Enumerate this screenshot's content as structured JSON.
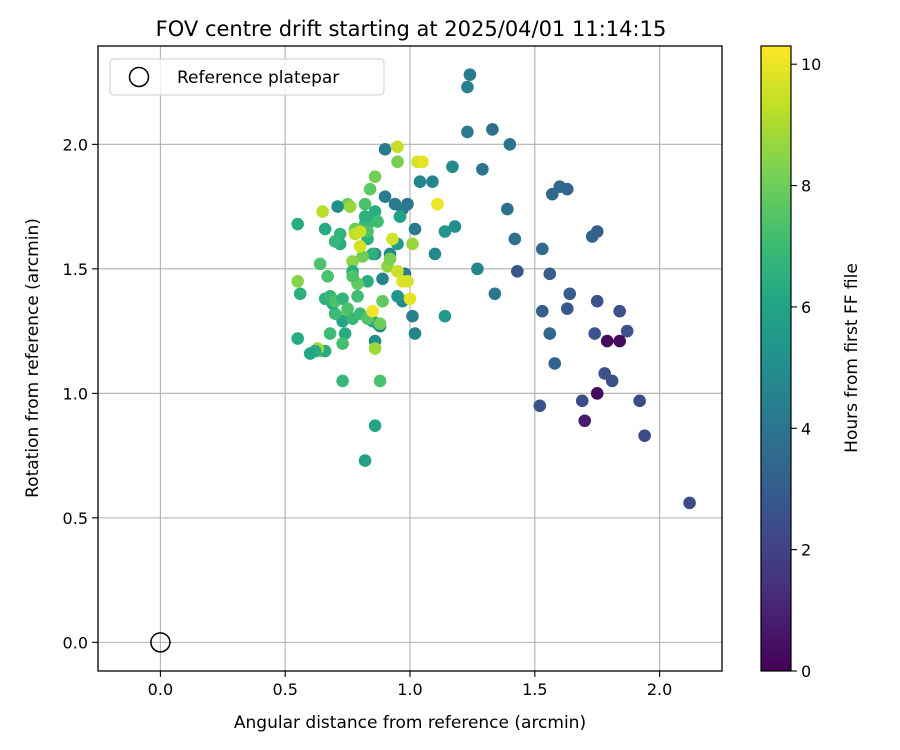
{
  "chart_data": {
    "type": "scatter",
    "title": "FOV centre drift starting at 2025/04/01 11:14:15",
    "xlabel": "Angular distance from reference (arcmin)",
    "ylabel": "Rotation from reference (arcmin)",
    "xlim": [
      -0.25,
      2.25
    ],
    "ylim": [
      -0.115,
      2.395
    ],
    "xticks": [
      0.0,
      0.5,
      1.0,
      1.5,
      2.0
    ],
    "yticks": [
      0.0,
      0.5,
      1.0,
      1.5,
      2.0
    ],
    "xtick_labels": [
      "0.0",
      "0.5",
      "1.0",
      "1.5",
      "2.0"
    ],
    "ytick_labels": [
      "0.0",
      "0.5",
      "1.0",
      "1.5",
      "2.0"
    ],
    "grid": true,
    "legend": {
      "placement": "top-left",
      "entries": [
        "Reference platepar"
      ]
    },
    "reference_point": {
      "x": 0.0,
      "y": 0.0,
      "label": "Reference platepar"
    },
    "colorbar": {
      "label": "Hours from first FF file",
      "colormap": "viridis",
      "range": [
        0,
        10.3
      ],
      "ticks": [
        0,
        2,
        4,
        6,
        8,
        10
      ],
      "tick_labels": [
        "0",
        "2",
        "4",
        "6",
        "8",
        "10"
      ]
    },
    "series": [
      {
        "marker": "circle",
        "points": [
          [
            2.12,
            0.56,
            2.3
          ],
          [
            1.94,
            0.83,
            2.3
          ],
          [
            1.92,
            0.97,
            2.4
          ],
          [
            1.87,
            1.25,
            2.6
          ],
          [
            1.84,
            1.33,
            2.6
          ],
          [
            1.84,
            1.21,
            0.3
          ],
          [
            1.81,
            1.05,
            2.5
          ],
          [
            1.79,
            1.21,
            0.3
          ],
          [
            1.78,
            1.08,
            2.6
          ],
          [
            1.75,
            1.0,
            0.2
          ],
          [
            1.75,
            1.37,
            2.6
          ],
          [
            1.74,
            1.24,
            2.7
          ],
          [
            1.75,
            1.65,
            3.0
          ],
          [
            1.73,
            1.63,
            3.2
          ],
          [
            1.7,
            0.89,
            0.8
          ],
          [
            1.69,
            0.97,
            2.4
          ],
          [
            1.64,
            1.4,
            3.0
          ],
          [
            1.63,
            1.34,
            2.8
          ],
          [
            1.63,
            1.82,
            3.3
          ],
          [
            1.6,
            1.83,
            3.4
          ],
          [
            1.58,
            1.12,
            3.3
          ],
          [
            1.57,
            1.8,
            3.5
          ],
          [
            1.56,
            1.48,
            3.0
          ],
          [
            1.56,
            1.24,
            3.4
          ],
          [
            1.53,
            1.33,
            3.1
          ],
          [
            1.53,
            1.58,
            3.6
          ],
          [
            1.52,
            0.95,
            2.6
          ],
          [
            1.43,
            1.49,
            2.7
          ],
          [
            1.42,
            1.62,
            3.8
          ],
          [
            1.39,
            1.74,
            3.8
          ],
          [
            1.4,
            2.0,
            4.0
          ],
          [
            1.34,
            1.4,
            4.1
          ],
          [
            1.33,
            2.06,
            3.8
          ],
          [
            1.29,
            1.9,
            4.0
          ],
          [
            1.27,
            1.5,
            4.7
          ],
          [
            1.24,
            2.28,
            4.3
          ],
          [
            1.23,
            2.23,
            4.5
          ],
          [
            1.23,
            2.05,
            4.2
          ],
          [
            1.18,
            1.67,
            5.0
          ],
          [
            1.17,
            1.91,
            4.9
          ],
          [
            1.14,
            1.31,
            5.5
          ],
          [
            1.14,
            1.65,
            5.3
          ],
          [
            1.1,
            1.56,
            4.8
          ],
          [
            1.09,
            1.85,
            4.6
          ],
          [
            1.04,
            1.85,
            4.6
          ],
          [
            1.02,
            1.66,
            4.3
          ],
          [
            1.02,
            1.24,
            4.6
          ],
          [
            1.01,
            1.31,
            4.5
          ],
          [
            0.99,
            1.76,
            4.0
          ],
          [
            0.97,
            1.74,
            4.2
          ],
          [
            0.96,
            1.71,
            4.6
          ],
          [
            0.94,
            1.76,
            4.2
          ],
          [
            0.98,
            1.48,
            4.3
          ],
          [
            0.97,
            1.37,
            4.9
          ],
          [
            0.95,
            1.39,
            5.4
          ],
          [
            0.95,
            1.6,
            5.6
          ],
          [
            0.92,
            1.56,
            4.8
          ],
          [
            0.9,
            1.79,
            4.3
          ],
          [
            0.9,
            1.98,
            4.2
          ],
          [
            0.89,
            1.46,
            4.5
          ],
          [
            0.88,
            1.27,
            4.6
          ],
          [
            0.87,
            1.28,
            5.2
          ],
          [
            0.86,
            1.56,
            4.6
          ],
          [
            0.86,
            1.21,
            5.1
          ],
          [
            0.85,
            1.29,
            6.1
          ],
          [
            0.86,
            1.73,
            6.4
          ],
          [
            0.84,
            1.69,
            6.4
          ],
          [
            0.85,
            1.56,
            6.5
          ],
          [
            0.83,
            1.62,
            6.5
          ],
          [
            0.83,
            1.45,
            6.4
          ],
          [
            0.82,
            1.68,
            6.9
          ],
          [
            0.82,
            1.71,
            6.5
          ],
          [
            0.82,
            0.73,
            5.9
          ],
          [
            0.86,
            0.87,
            6.0
          ],
          [
            0.88,
            1.05,
            7.3
          ],
          [
            0.88,
            1.28,
            8.0
          ],
          [
            0.89,
            1.37,
            7.8
          ],
          [
            0.87,
            1.69,
            7.1
          ],
          [
            0.86,
            1.87,
            8.1
          ],
          [
            0.84,
            1.82,
            7.7
          ],
          [
            0.82,
            1.76,
            7.3
          ],
          [
            0.83,
            1.65,
            7.4
          ],
          [
            0.81,
            1.55,
            8.0
          ],
          [
            0.79,
            1.44,
            7.8
          ],
          [
            0.78,
            1.66,
            7.9
          ],
          [
            0.77,
            1.53,
            8.5
          ],
          [
            0.77,
            1.49,
            6.4
          ],
          [
            0.76,
            1.75,
            7.4
          ],
          [
            0.75,
            1.76,
            8.0
          ],
          [
            0.74,
            1.31,
            8.2
          ],
          [
            0.73,
            1.29,
            6.1
          ],
          [
            0.74,
            1.24,
            6.4
          ],
          [
            0.73,
            1.2,
            7.2
          ],
          [
            0.73,
            1.05,
            6.8
          ],
          [
            0.72,
            1.64,
            6.7
          ],
          [
            0.72,
            1.6,
            6.4
          ],
          [
            0.71,
            1.75,
            5.1
          ],
          [
            0.7,
            1.61,
            6.8
          ],
          [
            0.7,
            1.32,
            7.0
          ],
          [
            0.69,
            1.36,
            6.3
          ],
          [
            0.68,
            1.24,
            7.0
          ],
          [
            0.67,
            1.47,
            7.3
          ],
          [
            0.66,
            1.38,
            6.6
          ],
          [
            0.66,
            1.66,
            6.3
          ],
          [
            0.65,
            1.73,
            9.2
          ],
          [
            0.64,
            1.52,
            7.4
          ],
          [
            0.64,
            1.17,
            8.5
          ],
          [
            0.66,
            1.17,
            6.4
          ],
          [
            0.63,
            1.18,
            8.9
          ],
          [
            0.62,
            1.17,
            6.4
          ],
          [
            0.6,
            1.16,
            6.1
          ],
          [
            0.56,
            1.4,
            6.5
          ],
          [
            0.55,
            1.45,
            8.4
          ],
          [
            0.55,
            1.22,
            6.3
          ],
          [
            0.55,
            1.68,
            6.4
          ],
          [
            0.68,
            1.39,
            6.8
          ],
          [
            0.7,
            1.37,
            7.4
          ],
          [
            0.73,
            1.38,
            6.7
          ],
          [
            0.75,
            1.34,
            7.4
          ],
          [
            0.77,
            1.3,
            6.9
          ],
          [
            0.8,
            1.32,
            7.0
          ],
          [
            0.83,
            1.3,
            7.6
          ],
          [
            0.85,
            1.33,
            10.1
          ],
          [
            0.78,
            1.64,
            9.3
          ],
          [
            0.8,
            1.59,
            9.6
          ],
          [
            0.8,
            1.65,
            9.5
          ],
          [
            0.91,
            1.51,
            8.6
          ],
          [
            0.92,
            1.54,
            8.2
          ],
          [
            0.93,
            1.62,
            9.6
          ],
          [
            0.95,
            1.49,
            9.5
          ],
          [
            0.97,
            1.45,
            9.8
          ],
          [
            0.99,
            1.45,
            9.7
          ],
          [
            1.0,
            1.38,
            9.9
          ],
          [
            1.01,
            1.6,
            8.7
          ],
          [
            1.03,
            1.93,
            9.6
          ],
          [
            1.05,
            1.93,
            9.9
          ],
          [
            1.11,
            1.76,
            10.0
          ],
          [
            0.95,
            1.99,
            9.4
          ],
          [
            0.95,
            1.93,
            8.2
          ],
          [
            0.86,
            1.18,
            8.8
          ],
          [
            0.79,
            1.39,
            7.1
          ],
          [
            0.76,
            1.75,
            8.7
          ],
          [
            0.77,
            1.47,
            7.4
          ],
          [
            0.96,
            1.71,
            5.9
          ]
        ]
      }
    ]
  }
}
